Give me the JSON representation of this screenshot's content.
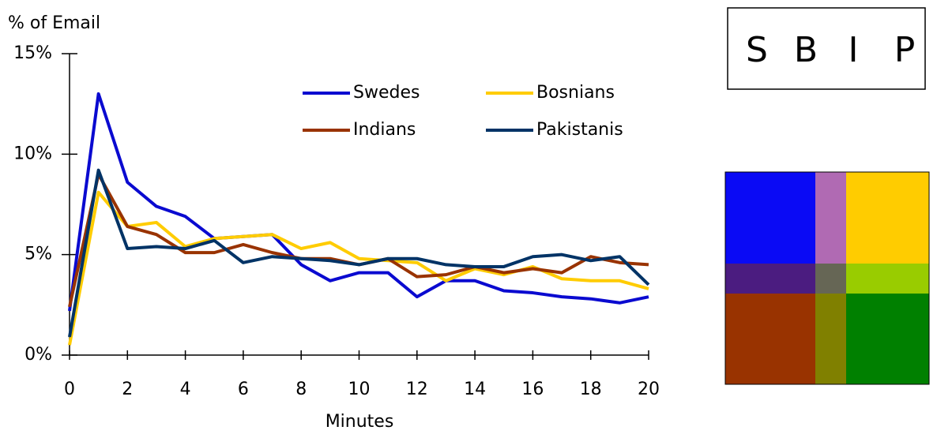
{
  "chart_data": {
    "type": "line",
    "y_label": "% of Email",
    "x_label": "Minutes",
    "x": [
      0,
      1,
      2,
      3,
      4,
      5,
      6,
      7,
      8,
      9,
      10,
      11,
      12,
      13,
      14,
      15,
      16,
      17,
      18,
      19,
      20
    ],
    "xlim": [
      0,
      20
    ],
    "xticks": [
      0,
      2,
      4,
      6,
      8,
      10,
      12,
      14,
      16,
      18,
      20
    ],
    "ylim": [
      0,
      15
    ],
    "yticks": [
      {
        "value": 0,
        "label": "0%"
      },
      {
        "value": 5,
        "label": "5%"
      },
      {
        "value": 10,
        "label": "10%"
      },
      {
        "value": 15,
        "label": "15%"
      }
    ],
    "legend": "upper right",
    "series": [
      {
        "name": "Swedes",
        "color": "#0a0ad0",
        "values": [
          2.2,
          13.0,
          8.6,
          7.4,
          6.9,
          5.8,
          5.9,
          6.0,
          4.5,
          3.7,
          4.1,
          4.1,
          2.9,
          3.7,
          3.7,
          3.2,
          3.1,
          2.9,
          2.8,
          2.6,
          2.9
        ]
      },
      {
        "name": "Bosnians",
        "color": "#ffcc00",
        "values": [
          0.5,
          8.1,
          6.4,
          6.6,
          5.4,
          5.8,
          5.9,
          6.0,
          5.3,
          5.6,
          4.8,
          4.7,
          4.6,
          3.7,
          4.3,
          4.0,
          4.4,
          3.8,
          3.7,
          3.7,
          3.3
        ]
      },
      {
        "name": "Indians",
        "color": "#993300",
        "values": [
          2.4,
          9.0,
          6.4,
          6.0,
          5.1,
          5.1,
          5.5,
          5.1,
          4.8,
          4.8,
          4.5,
          4.8,
          3.9,
          4.0,
          4.4,
          4.1,
          4.3,
          4.1,
          4.9,
          4.6,
          4.5
        ]
      },
      {
        "name": "Pakistanis",
        "color": "#003366",
        "values": [
          0.9,
          9.2,
          5.3,
          5.4,
          5.3,
          5.7,
          4.6,
          4.9,
          4.8,
          4.7,
          4.5,
          4.8,
          4.8,
          4.5,
          4.4,
          4.4,
          4.9,
          5.0,
          4.7,
          4.9,
          3.5
        ]
      }
    ]
  },
  "key_box": {
    "letters": [
      "S",
      "B",
      "I",
      "P"
    ]
  }
}
